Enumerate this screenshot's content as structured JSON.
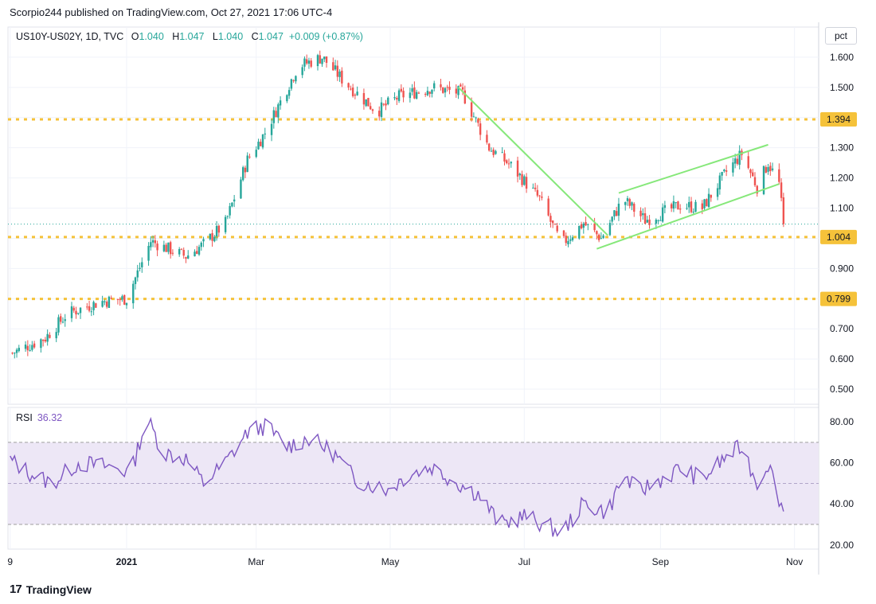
{
  "header": {
    "publish_line": "Scorpio244 published on TradingView.com, Oct 27, 2021 17:06 UTC-4"
  },
  "legend": {
    "symbol": "US10Y-US02Y, 1D, TVC",
    "o_label": "O",
    "o": "1.040",
    "h_label": "H",
    "h": "1.047",
    "l_label": "L",
    "l": "1.040",
    "c_label": "C",
    "c": "1.047",
    "change": "+0.009 (+0.87%)"
  },
  "scale_button": "pct",
  "rsi_legend": {
    "label": "RSI",
    "value": "36.32"
  },
  "footer": {
    "brand": "TradingView",
    "logo": "17"
  },
  "colors": {
    "up": "#26a69a",
    "down": "#ef5350",
    "level": "#f5c23a",
    "trendline": "#86e87a",
    "rsi": "#7e57c2",
    "rsi_band": "#ede7f6",
    "lastprice": "#26a69a"
  },
  "chart_data": [
    {
      "type": "candlestick",
      "title": "US10Y-US02Y, 1D, TVC",
      "x_ticks": [
        "9",
        "2021",
        "Mar",
        "May",
        "Jul",
        "Sep",
        "Nov"
      ],
      "y_ticks": [
        "0.500",
        "0.600",
        "0.700",
        "0.800",
        "0.900",
        "1.000",
        "1.100",
        "1.200",
        "1.300",
        "1.400",
        "1.500",
        "1.600"
      ],
      "ylim": [
        0.45,
        1.7
      ],
      "price_anchors": [
        {
          "date": "2020-11-10",
          "value": 0.62
        },
        {
          "date": "2020-11-25",
          "value": 0.67
        },
        {
          "date": "2020-12-05",
          "value": 0.75
        },
        {
          "date": "2020-12-20",
          "value": 0.79
        },
        {
          "date": "2021-01-01",
          "value": 0.8
        },
        {
          "date": "2021-01-12",
          "value": 0.99
        },
        {
          "date": "2021-01-28",
          "value": 0.94
        },
        {
          "date": "2021-02-05",
          "value": 0.98
        },
        {
          "date": "2021-02-15",
          "value": 1.05
        },
        {
          "date": "2021-02-25",
          "value": 1.26
        },
        {
          "date": "2021-03-05",
          "value": 1.35
        },
        {
          "date": "2021-03-20",
          "value": 1.57
        },
        {
          "date": "2021-03-31",
          "value": 1.6
        },
        {
          "date": "2021-04-10",
          "value": 1.52
        },
        {
          "date": "2021-04-25",
          "value": 1.42
        },
        {
          "date": "2021-05-05",
          "value": 1.47
        },
        {
          "date": "2021-05-20",
          "value": 1.5
        },
        {
          "date": "2021-06-03",
          "value": 1.48
        },
        {
          "date": "2021-06-15",
          "value": 1.3
        },
        {
          "date": "2021-06-25",
          "value": 1.24
        },
        {
          "date": "2021-07-08",
          "value": 1.13
        },
        {
          "date": "2021-07-18",
          "value": 0.98
        },
        {
          "date": "2021-07-28",
          "value": 1.05
        },
        {
          "date": "2021-08-05",
          "value": 1.0
        },
        {
          "date": "2021-08-15",
          "value": 1.13
        },
        {
          "date": "2021-08-25",
          "value": 1.06
        },
        {
          "date": "2021-09-10",
          "value": 1.11
        },
        {
          "date": "2021-09-20",
          "value": 1.1
        },
        {
          "date": "2021-10-01",
          "value": 1.22
        },
        {
          "date": "2021-10-08",
          "value": 1.28
        },
        {
          "date": "2021-10-15",
          "value": 1.17
        },
        {
          "date": "2021-10-20",
          "value": 1.25
        },
        {
          "date": "2021-10-25",
          "value": 1.18
        },
        {
          "date": "2021-10-27",
          "value": 1.047
        }
      ],
      "levels": [
        {
          "label": "1.394",
          "value": 1.394
        },
        {
          "label": "1.004",
          "value": 1.004
        },
        {
          "label": "0.799",
          "value": 0.799
        }
      ],
      "last_price": 1.047,
      "trendlines": [
        {
          "from": {
            "date": "2021-06-01",
            "value": 1.5
          },
          "to": {
            "date": "2021-08-08",
            "value": 1.01
          }
        },
        {
          "from": {
            "date": "2021-08-03",
            "value": 0.965
          },
          "to": {
            "date": "2021-10-25",
            "value": 1.18
          }
        },
        {
          "from": {
            "date": "2021-08-13",
            "value": 1.15
          },
          "to": {
            "date": "2021-10-20",
            "value": 1.31
          }
        }
      ]
    },
    {
      "type": "line",
      "title": "RSI",
      "y_ticks": [
        "20.00",
        "40.00",
        "60.00",
        "80.00"
      ],
      "ylim": [
        18,
        87
      ],
      "band": [
        30,
        70
      ],
      "midline": 50,
      "rsi_anchors": [
        {
          "date": "2020-11-08",
          "value": 62
        },
        {
          "date": "2020-11-18",
          "value": 55
        },
        {
          "date": "2020-11-28",
          "value": 50
        },
        {
          "date": "2020-12-10",
          "value": 60
        },
        {
          "date": "2020-12-25",
          "value": 58
        },
        {
          "date": "2021-01-03",
          "value": 55
        },
        {
          "date": "2021-01-10",
          "value": 82
        },
        {
          "date": "2021-01-18",
          "value": 65
        },
        {
          "date": "2021-01-28",
          "value": 62
        },
        {
          "date": "2021-02-05",
          "value": 50
        },
        {
          "date": "2021-02-15",
          "value": 60
        },
        {
          "date": "2021-02-25",
          "value": 75
        },
        {
          "date": "2021-03-05",
          "value": 78
        },
        {
          "date": "2021-03-15",
          "value": 68
        },
        {
          "date": "2021-03-25",
          "value": 72
        },
        {
          "date": "2021-04-05",
          "value": 65
        },
        {
          "date": "2021-04-15",
          "value": 52
        },
        {
          "date": "2021-04-30",
          "value": 47
        },
        {
          "date": "2021-05-10",
          "value": 55
        },
        {
          "date": "2021-05-20",
          "value": 58
        },
        {
          "date": "2021-06-01",
          "value": 50
        },
        {
          "date": "2021-06-10",
          "value": 45
        },
        {
          "date": "2021-06-20",
          "value": 30
        },
        {
          "date": "2021-07-01",
          "value": 34
        },
        {
          "date": "2021-07-10",
          "value": 30
        },
        {
          "date": "2021-07-18",
          "value": 26
        },
        {
          "date": "2021-07-28",
          "value": 40
        },
        {
          "date": "2021-08-08",
          "value": 36
        },
        {
          "date": "2021-08-15",
          "value": 54
        },
        {
          "date": "2021-08-22",
          "value": 46
        },
        {
          "date": "2021-09-01",
          "value": 52
        },
        {
          "date": "2021-09-10",
          "value": 57
        },
        {
          "date": "2021-09-20",
          "value": 52
        },
        {
          "date": "2021-10-01",
          "value": 63
        },
        {
          "date": "2021-10-08",
          "value": 68
        },
        {
          "date": "2021-10-15",
          "value": 50
        },
        {
          "date": "2021-10-20",
          "value": 60
        },
        {
          "date": "2021-10-27",
          "value": 36.32
        }
      ]
    }
  ]
}
